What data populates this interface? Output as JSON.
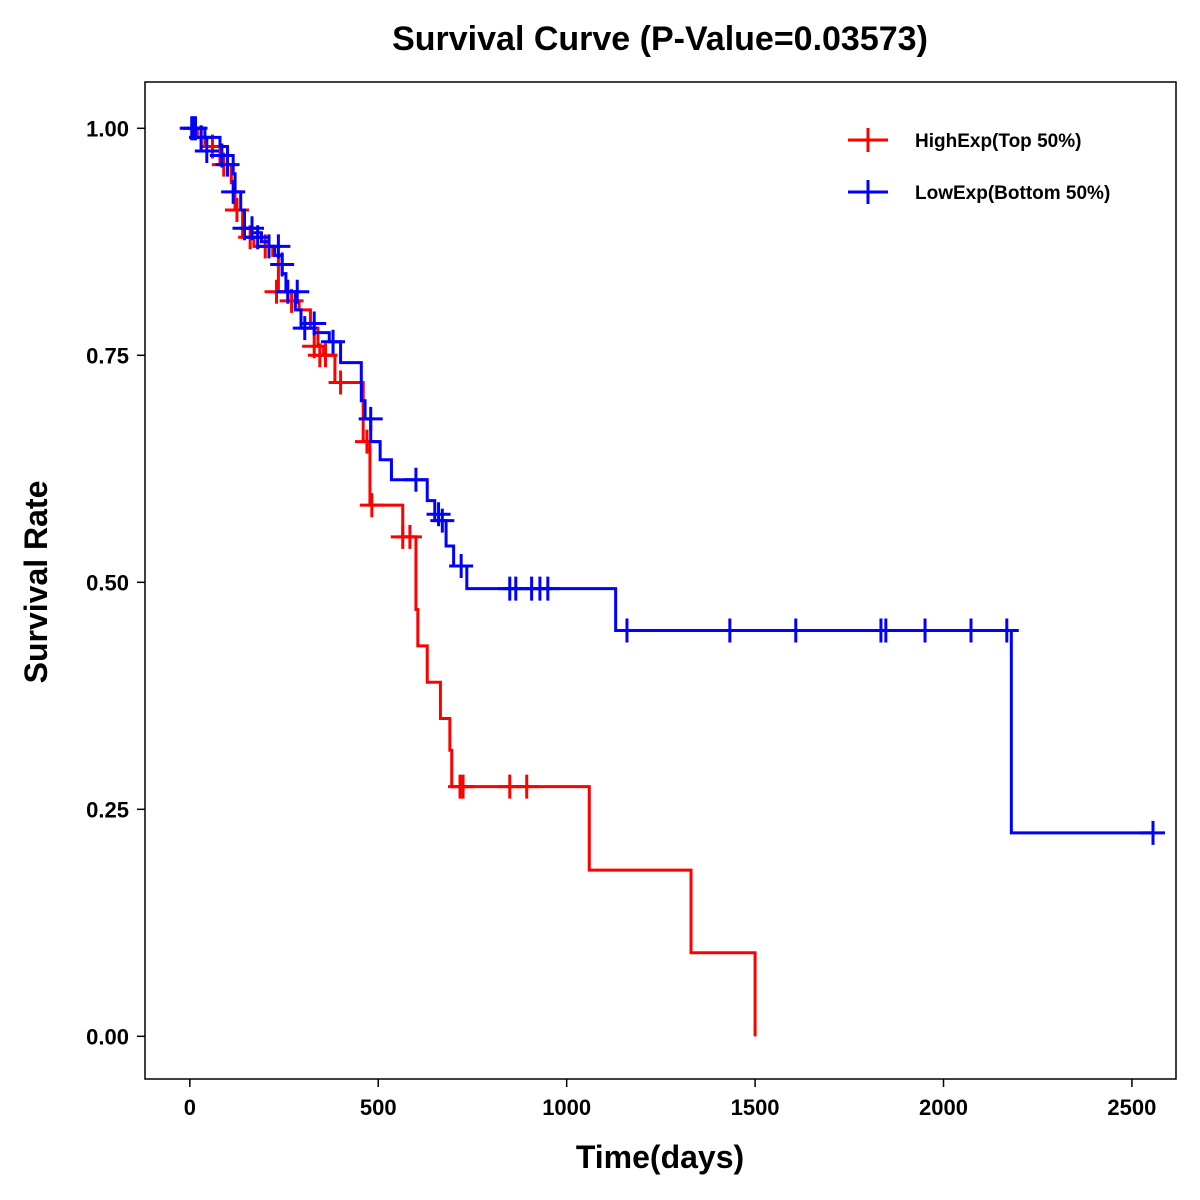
{
  "chart_data": {
    "type": "line",
    "subtype": "kaplan-meier step",
    "title": "Survival Curve (P-Value=0.03573)",
    "xlabel": "Time(days)",
    "ylabel": "Survival Rate",
    "xlim": [
      -119,
      2617
    ],
    "ylim": [
      -0.047,
      1.051
    ],
    "xticks": [
      0,
      500,
      1000,
      1500,
      2000,
      2500
    ],
    "xtick_labels": [
      "0",
      "500",
      "1000",
      "1500",
      "2000",
      "2500"
    ],
    "yticks": [
      0,
      0.25,
      0.5,
      0.75,
      1.0
    ],
    "ytick_labels": [
      "0.00",
      "0.25",
      "0.50",
      "0.75",
      "1.00"
    ],
    "grid": false,
    "legend_position": "top-right",
    "series": [
      {
        "name": "HighExp(Top 50%)",
        "color": "#ff0000",
        "steps": [
          [
            0,
            1
          ],
          [
            20,
            0.99
          ],
          [
            40,
            0.98
          ],
          [
            80,
            0.96
          ],
          [
            110,
            0.94
          ],
          [
            120,
            0.91
          ],
          [
            140,
            0.88
          ],
          [
            170,
            0.87
          ],
          [
            220,
            0.86
          ],
          [
            235,
            0.82
          ],
          [
            260,
            0.81
          ],
          [
            290,
            0.8
          ],
          [
            320,
            0.78
          ],
          [
            340,
            0.76
          ],
          [
            355,
            0.75
          ],
          [
            385,
            0.72
          ],
          [
            460,
            0.655
          ],
          [
            478,
            0.585
          ],
          [
            565,
            0.55
          ],
          [
            600,
            0.47
          ],
          [
            605,
            0.43
          ],
          [
            630,
            0.39
          ],
          [
            665,
            0.35
          ],
          [
            690,
            0.315
          ],
          [
            695,
            0.275
          ],
          [
            1060,
            0.183
          ],
          [
            1330,
            0.092
          ],
          [
            1500,
            0.0
          ]
        ],
        "censored": [
          [
            30,
            0.99
          ],
          [
            60,
            0.98
          ],
          [
            90,
            0.96
          ],
          [
            125,
            0.91
          ],
          [
            160,
            0.88
          ],
          [
            200,
            0.87
          ],
          [
            230,
            0.82
          ],
          [
            270,
            0.81
          ],
          [
            330,
            0.76
          ],
          [
            345,
            0.75
          ],
          [
            360,
            0.75
          ],
          [
            400,
            0.72
          ],
          [
            470,
            0.655
          ],
          [
            483,
            0.585
          ],
          [
            565,
            0.55
          ],
          [
            584,
            0.55
          ],
          [
            717,
            0.275
          ],
          [
            725,
            0.275
          ],
          [
            849,
            0.275
          ],
          [
            894,
            0.275
          ]
        ]
      },
      {
        "name": "LowExp(Bottom 50%)",
        "color": "#0000ff",
        "steps": [
          [
            0,
            1
          ],
          [
            40,
            0.99
          ],
          [
            80,
            0.98
          ],
          [
            100,
            0.97
          ],
          [
            115,
            0.95
          ],
          [
            120,
            0.93
          ],
          [
            135,
            0.91
          ],
          [
            145,
            0.89
          ],
          [
            165,
            0.885
          ],
          [
            190,
            0.875
          ],
          [
            210,
            0.87
          ],
          [
            225,
            0.86
          ],
          [
            245,
            0.84
          ],
          [
            255,
            0.82
          ],
          [
            280,
            0.8
          ],
          [
            295,
            0.78
          ],
          [
            330,
            0.775
          ],
          [
            370,
            0.765
          ],
          [
            400,
            0.742
          ],
          [
            455,
            0.7
          ],
          [
            465,
            0.68
          ],
          [
            480,
            0.655
          ],
          [
            505,
            0.635
          ],
          [
            535,
            0.613
          ],
          [
            630,
            0.59
          ],
          [
            650,
            0.568
          ],
          [
            680,
            0.54
          ],
          [
            700,
            0.518
          ],
          [
            735,
            0.493
          ],
          [
            1130,
            0.447
          ],
          [
            2180,
            0.224
          ],
          [
            2560,
            0.224
          ]
        ],
        "censored": [
          [
            5,
            1
          ],
          [
            10,
            1
          ],
          [
            15,
            1
          ],
          [
            30,
            0.99
          ],
          [
            45,
            0.975
          ],
          [
            85,
            0.97
          ],
          [
            100,
            0.96
          ],
          [
            115,
            0.93
          ],
          [
            145,
            0.89
          ],
          [
            165,
            0.89
          ],
          [
            180,
            0.88
          ],
          [
            210,
            0.87
          ],
          [
            235,
            0.87
          ],
          [
            245,
            0.85
          ],
          [
            260,
            0.82
          ],
          [
            285,
            0.82
          ],
          [
            305,
            0.78
          ],
          [
            330,
            0.785
          ],
          [
            380,
            0.765
          ],
          [
            480,
            0.68
          ],
          [
            600,
            0.613
          ],
          [
            660,
            0.575
          ],
          [
            670,
            0.568
          ],
          [
            720,
            0.518
          ],
          [
            849,
            0.493
          ],
          [
            865,
            0.493
          ],
          [
            907,
            0.493
          ],
          [
            929,
            0.493
          ],
          [
            950,
            0.493
          ],
          [
            1160,
            0.447
          ],
          [
            1433,
            0.447
          ],
          [
            1608,
            0.447
          ],
          [
            1834,
            0.447
          ],
          [
            1847,
            0.447
          ],
          [
            1951,
            0.447
          ],
          [
            2073,
            0.447
          ],
          [
            2168,
            0.447
          ],
          [
            2556,
            0.224
          ]
        ]
      }
    ]
  }
}
